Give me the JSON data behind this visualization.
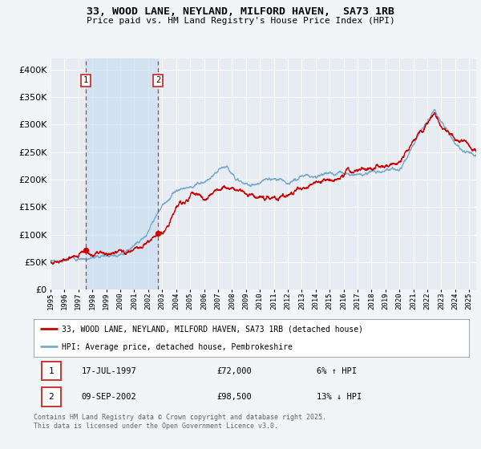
{
  "title": "33, WOOD LANE, NEYLAND, MILFORD HAVEN,  SA73 1RB",
  "subtitle": "Price paid vs. HM Land Registry's House Price Index (HPI)",
  "bg_color": "#f2f5f8",
  "plot_bg_color": "#e6ecf2",
  "grid_color": "#ffffff",
  "red_line_color": "#cc0000",
  "blue_line_color": "#7aabce",
  "annotation1_date": "17-JUL-1997",
  "annotation1_price": "£72,000",
  "annotation1_hpi": "6% ↑ HPI",
  "annotation1_year": 1997.54,
  "annotation2_date": "09-SEP-2002",
  "annotation2_price": "£98,500",
  "annotation2_hpi": "13% ↓ HPI",
  "annotation2_year": 2002.69,
  "legend_label_red": "33, WOOD LANE, NEYLAND, MILFORD HAVEN, SA73 1RB (detached house)",
  "legend_label_blue": "HPI: Average price, detached house, Pembrokeshire",
  "footer": "Contains HM Land Registry data © Crown copyright and database right 2025.\nThis data is licensed under the Open Government Licence v3.0.",
  "ylim": [
    0,
    420000
  ],
  "xlim_start": 1995.0,
  "xlim_end": 2025.5,
  "shade_color": "#ccdff0"
}
